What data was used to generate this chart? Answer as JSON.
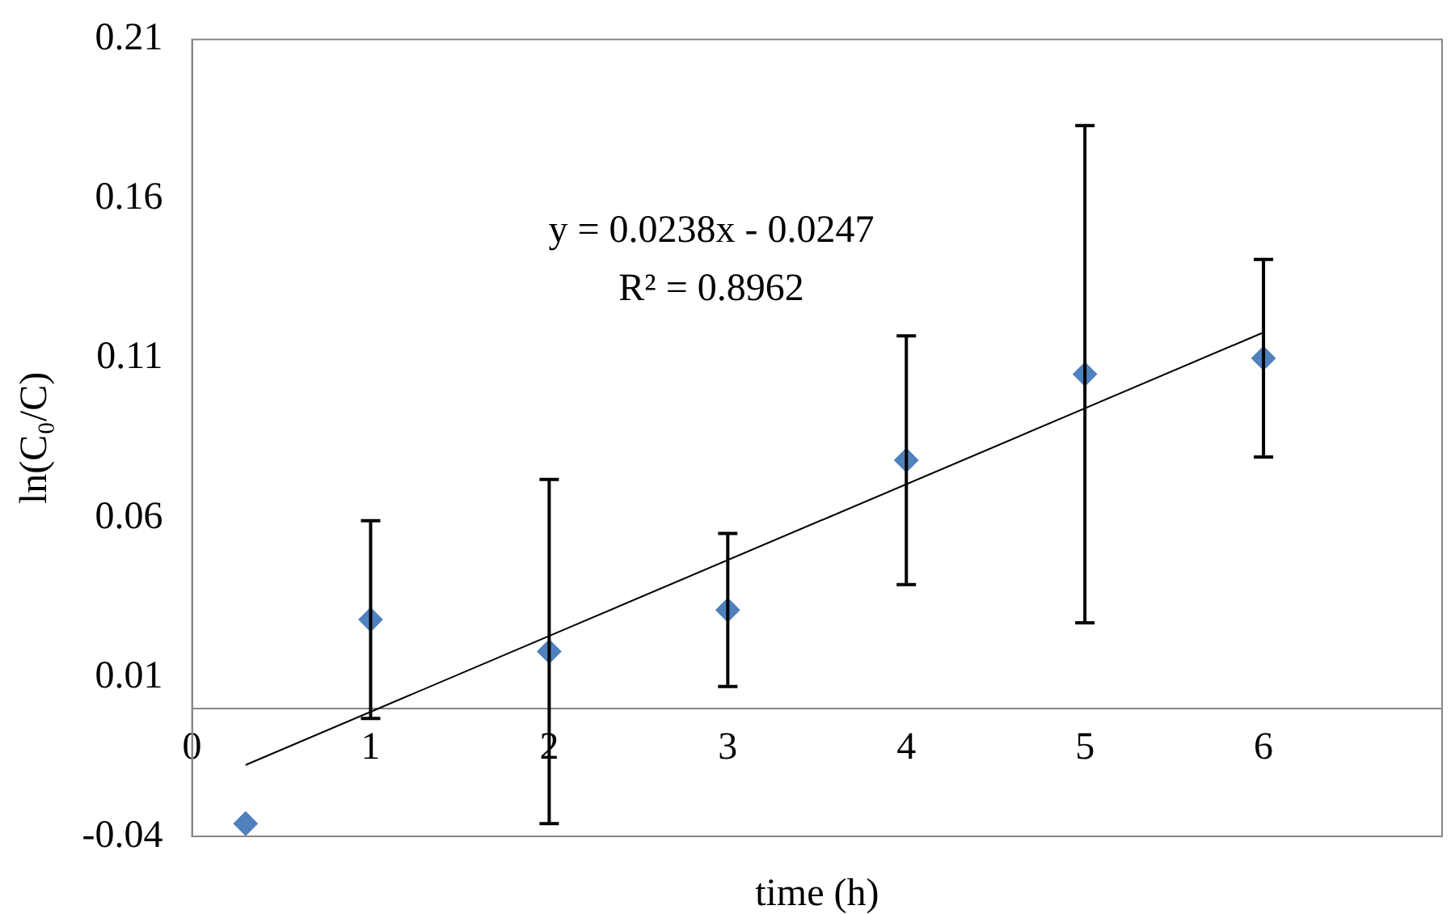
{
  "chart_data": {
    "type": "scatter",
    "xlabel": "time (h)",
    "ylabel": "ln(C₀/C)",
    "xlim": [
      0,
      7
    ],
    "xticks": [
      0,
      1,
      2,
      3,
      4,
      5,
      6
    ],
    "ylim": [
      -0.04,
      0.21
    ],
    "yticks": [
      -0.04,
      0.01,
      0.06,
      0.11,
      0.16,
      0.21
    ],
    "grid": false,
    "legend": false,
    "marker": "diamond",
    "series": [
      {
        "color": "#4f81bd",
        "x": [
          0.3,
          1,
          2,
          3,
          4,
          5,
          6
        ],
        "values": [
          -0.036,
          0.028,
          0.018,
          0.031,
          0.078,
          0.105,
          0.11
        ],
        "errors": [
          null,
          0.031,
          0.054,
          0.024,
          0.039,
          0.078,
          0.031
        ]
      },
      {
        "type": "line",
        "color": "#000000",
        "marker": "none",
        "line_style": "solid",
        "x": [
          0.3,
          6
        ],
        "values": [
          -0.0176,
          0.1181
        ]
      }
    ],
    "annotations": [
      "y = 0.0238x - 0.0247",
      "R² = 0.8962"
    ]
  }
}
